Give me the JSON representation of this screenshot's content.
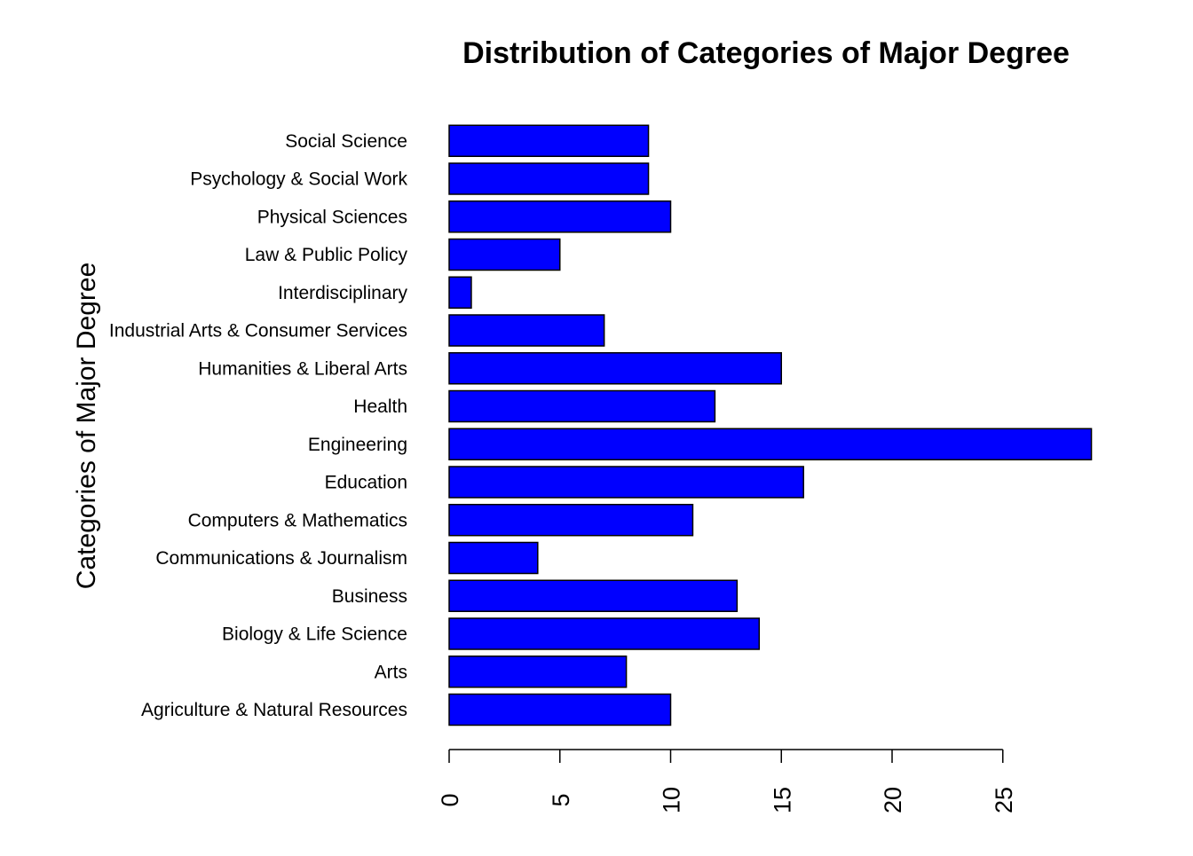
{
  "chart_data": {
    "type": "bar",
    "orientation": "horizontal",
    "title": "Distribution of Categories of Major Degree",
    "xlabel": "",
    "ylabel": "Categories of Major Degree",
    "categories": [
      "Agriculture & Natural Resources",
      "Arts",
      "Biology & Life Science",
      "Business",
      "Communications & Journalism",
      "Computers & Mathematics",
      "Education",
      "Engineering",
      "Health",
      "Humanities & Liberal Arts",
      "Industrial Arts & Consumer Services",
      "Interdisciplinary",
      "Law & Public Policy",
      "Physical Sciences",
      "Psychology & Social Work",
      "Social Science"
    ],
    "values": [
      10,
      8,
      14,
      13,
      4,
      11,
      16,
      29,
      12,
      15,
      7,
      1,
      5,
      10,
      9,
      9
    ],
    "x_ticks": [
      0,
      5,
      10,
      15,
      20,
      25
    ],
    "xlim": [
      0,
      29
    ],
    "bar_color": "#0000ff",
    "bar_border_color": "#000000",
    "grid": false,
    "legend": "none"
  }
}
